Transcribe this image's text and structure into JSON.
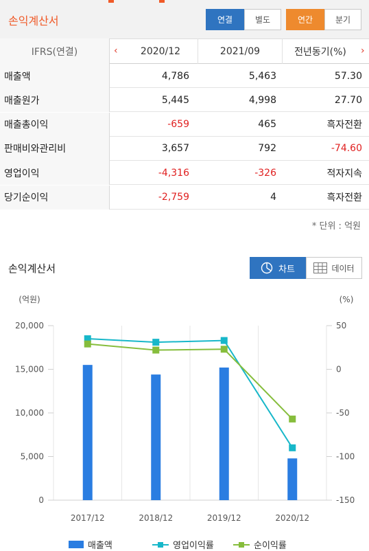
{
  "header": {
    "title": "손익계산서",
    "toggle_consolidated": "연결",
    "toggle_separate": "별도",
    "toggle_annual": "연간",
    "toggle_quarterly": "분기"
  },
  "table": {
    "head": [
      "IFRS(연결)",
      "2020/12",
      "2021/09",
      "전년동기(%)"
    ],
    "rows": [
      {
        "label": "매출액",
        "v1": "4,786",
        "v2": "5,463",
        "v3": "57.30",
        "neg": [
          false,
          false,
          false
        ]
      },
      {
        "label": "매출원가",
        "v1": "5,445",
        "v2": "4,998",
        "v3": "27.70",
        "neg": [
          false,
          false,
          false
        ]
      },
      {
        "label": "매출총이익",
        "v1": "-659",
        "v2": "465",
        "v3": "흑자전환",
        "neg": [
          true,
          false,
          false
        ]
      },
      {
        "label": "판매비와관리비",
        "v1": "3,657",
        "v2": "792",
        "v3": "-74.60",
        "neg": [
          false,
          false,
          true
        ]
      },
      {
        "label": "영업이익",
        "v1": "-4,316",
        "v2": "-326",
        "v3": "적자지속",
        "neg": [
          true,
          true,
          false
        ]
      },
      {
        "label": "당기순이익",
        "v1": "-2,759",
        "v2": "4",
        "v3": "흑자전환",
        "neg": [
          true,
          false,
          false
        ]
      }
    ],
    "unit": "* 단위 : 억원"
  },
  "chart_section": {
    "title": "손익계산서",
    "btn_chart": "차트",
    "btn_data": "데이터"
  },
  "chart_data": {
    "type": "bar",
    "categories": [
      "2017/12",
      "2018/12",
      "2019/12",
      "2020/12"
    ],
    "left_axis": {
      "label": "(억원)",
      "range": [
        0,
        20000
      ],
      "ticks": [
        "0",
        "5,000",
        "10,000",
        "15,000",
        "20,000"
      ]
    },
    "right_axis": {
      "label": "(%)",
      "range": [
        -150,
        50
      ],
      "ticks": [
        "-150",
        "-100",
        "-50",
        "0",
        "50"
      ]
    },
    "series": [
      {
        "name": "매출액",
        "kind": "bar",
        "axis": "left",
        "color": "#2a7de1",
        "values": [
          15500,
          14400,
          15200,
          4786
        ]
      },
      {
        "name": "영업이익률",
        "kind": "line",
        "axis": "right",
        "color": "#17b7c9",
        "values": [
          35,
          31,
          33,
          -90
        ]
      },
      {
        "name": "순이익률",
        "kind": "line",
        "axis": "right",
        "color": "#86bd3c",
        "values": [
          29,
          22,
          23,
          -57
        ]
      }
    ],
    "grid": "vertical"
  }
}
